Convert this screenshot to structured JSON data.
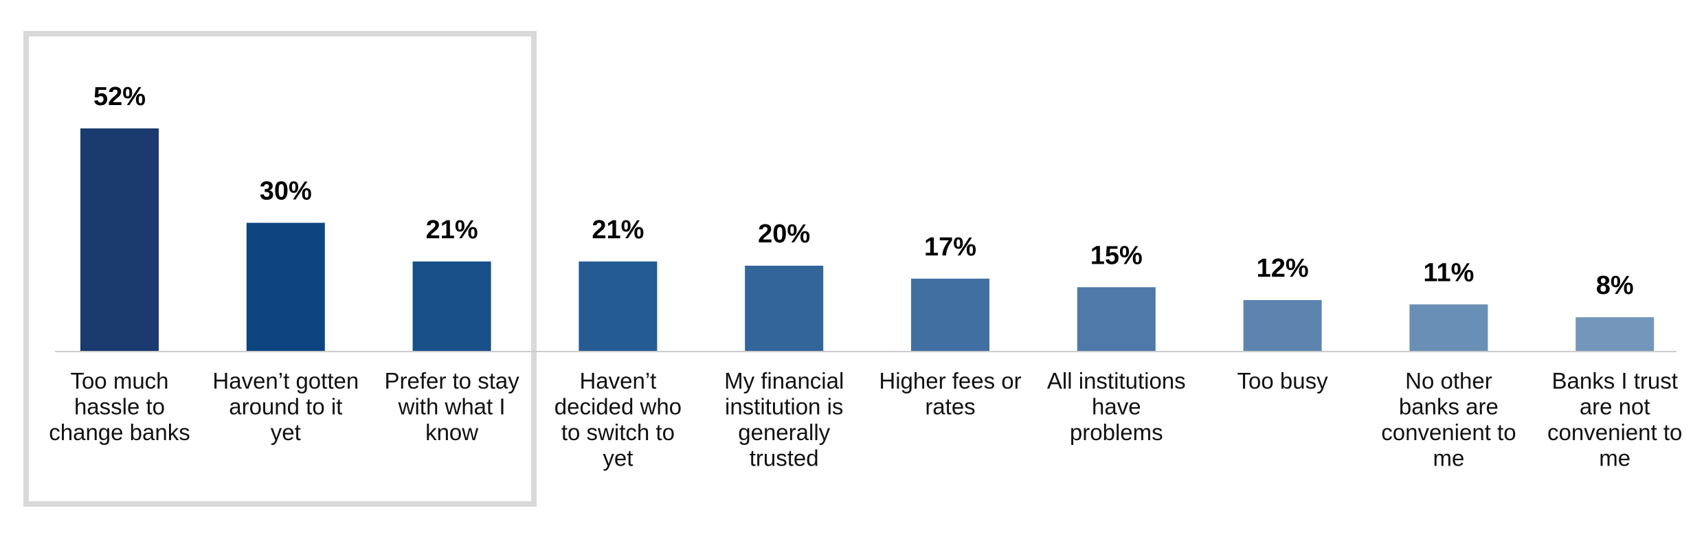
{
  "chart_data": {
    "type": "bar",
    "categories": [
      [
        "Too much",
        "hassle to",
        "change banks"
      ],
      [
        "Haven’t gotten",
        "around to it",
        "yet"
      ],
      [
        "Prefer to stay",
        "with what I",
        "know"
      ],
      [
        "Haven’t",
        "decided who",
        "to switch to",
        "yet"
      ],
      [
        "My financial",
        "institution is",
        "generally",
        "trusted"
      ],
      [
        "Higher fees or",
        "rates"
      ],
      [
        "All institutions",
        "have",
        "problems"
      ],
      [
        "Too busy"
      ],
      [
        "No other",
        "banks are",
        "convenient to",
        "me"
      ],
      [
        "Banks I trust",
        "are not",
        "convenient to",
        "me"
      ]
    ],
    "values": [
      52,
      30,
      21,
      21,
      20,
      17,
      15,
      12,
      11,
      8
    ],
    "value_labels": [
      "52%",
      "30%",
      "21%",
      "21%",
      "20%",
      "17%",
      "15%",
      "12%",
      "11%",
      "8%"
    ],
    "unit": "%",
    "ylim": [
      0,
      60
    ],
    "grid": false,
    "legend": "none",
    "highlight_box_categories": [
      0,
      1,
      2
    ],
    "colors": [
      "#1b3a6e",
      "#0d4580",
      "#174f88",
      "#255b93",
      "#33649a",
      "#416fa2",
      "#4e79a8",
      "#5c84af",
      "#6a8fb6",
      "#7596bb"
    ],
    "highlight_box_color": "#d9d9d9",
    "baseline_color": "#cccccc"
  }
}
